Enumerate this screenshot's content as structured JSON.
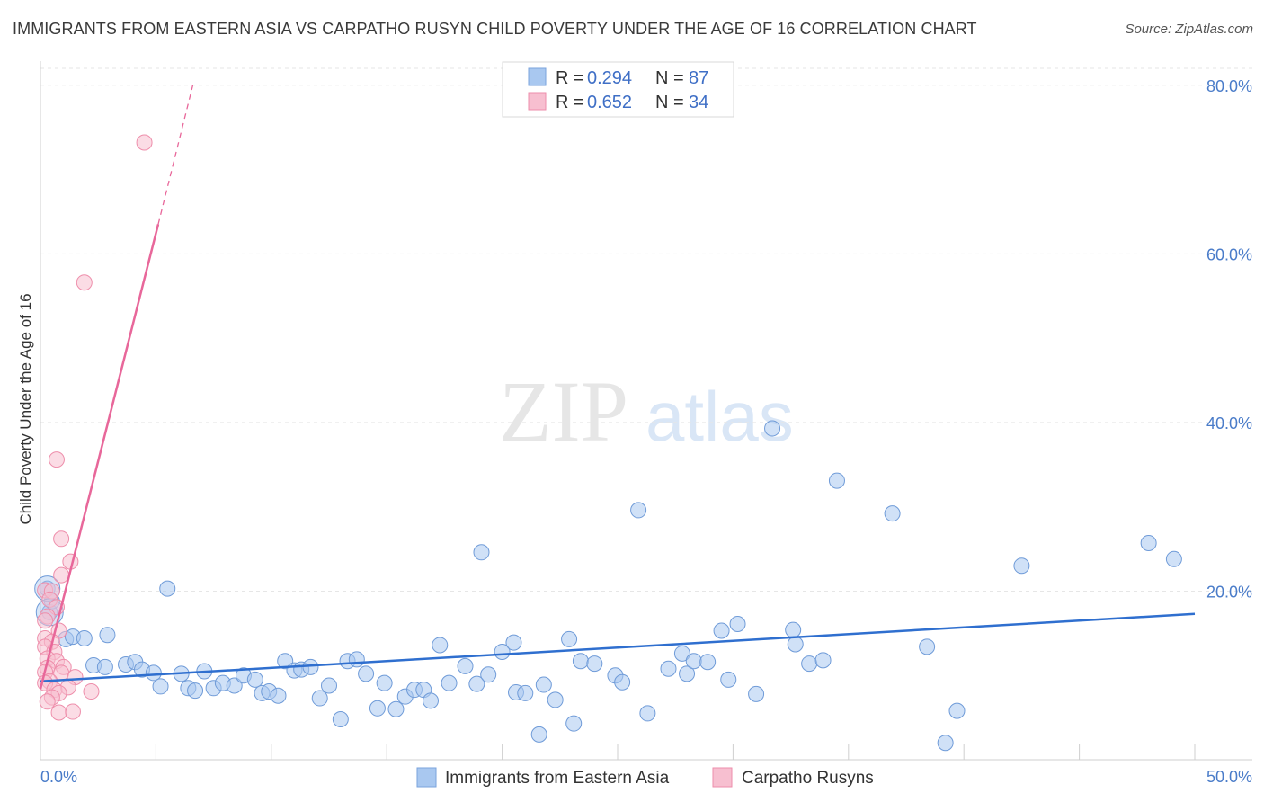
{
  "title": "IMMIGRANTS FROM EASTERN ASIA VS CARPATHO RUSYN CHILD POVERTY UNDER THE AGE OF 16 CORRELATION CHART",
  "source": "Source: ZipAtlas.com",
  "watermark": {
    "zip": "ZIP",
    "atlas": "atlas"
  },
  "legend_top": {
    "r_label": "R = ",
    "n_label": "N = ",
    "entries": [
      {
        "r": "0.294",
        "n": "87",
        "color": "#a9c8f0",
        "stroke": "#7aa3dd"
      },
      {
        "r": "0.652",
        "n": "34",
        "color": "#f7bfd0",
        "stroke": "#ee8eab"
      }
    ]
  },
  "legend_bottom": [
    "Immigrants from Eastern Asia",
    "Carpatho Rusyns"
  ],
  "chart_data": {
    "type": "scatter",
    "title": "IMMIGRANTS FROM EASTERN ASIA VS CARPATHO RUSYN CHILD POVERTY UNDER THE AGE OF 16 CORRELATION CHART",
    "xlabel": "",
    "ylabel": "Child Poverty Under the Age of 16",
    "xlim": [
      0,
      50
    ],
    "ylim": [
      0,
      82
    ],
    "x_tick_labels": [
      "0.0%",
      "50.0%"
    ],
    "y_ticks": [
      20,
      40,
      60,
      80
    ],
    "y_tick_labels": [
      "20.0%",
      "40.0%",
      "60.0%",
      "80.0%"
    ],
    "series": [
      {
        "name": "Immigrants from Eastern Asia",
        "color": "#a9c8f0",
        "stroke": "#6f9bd8",
        "trend_color": "#2f6fcf",
        "trend": {
          "x0": 0,
          "y0": 9.3,
          "x1": 50,
          "y1": 17.3
        },
        "points": [
          [
            0.3,
            20.3
          ],
          [
            0.4,
            17.5
          ],
          [
            1.1,
            14.3
          ],
          [
            1.4,
            14.6
          ],
          [
            1.9,
            14.4
          ],
          [
            2.3,
            11.2
          ],
          [
            2.9,
            14.8
          ],
          [
            2.8,
            11.0
          ],
          [
            3.7,
            11.3
          ],
          [
            4.1,
            11.6
          ],
          [
            4.4,
            10.7
          ],
          [
            4.9,
            10.3
          ],
          [
            5.2,
            8.7
          ],
          [
            5.5,
            20.3
          ],
          [
            6.1,
            10.2
          ],
          [
            6.4,
            8.5
          ],
          [
            6.7,
            8.2
          ],
          [
            7.1,
            10.5
          ],
          [
            7.5,
            8.5
          ],
          [
            7.9,
            9.1
          ],
          [
            8.4,
            8.8
          ],
          [
            8.8,
            10.0
          ],
          [
            9.3,
            9.5
          ],
          [
            9.6,
            7.9
          ],
          [
            9.9,
            8.1
          ],
          [
            10.3,
            7.6
          ],
          [
            10.6,
            11.7
          ],
          [
            11.0,
            10.6
          ],
          [
            11.3,
            10.7
          ],
          [
            11.7,
            11.0
          ],
          [
            12.1,
            7.3
          ],
          [
            12.5,
            8.8
          ],
          [
            13.0,
            4.8
          ],
          [
            13.3,
            11.7
          ],
          [
            13.7,
            11.9
          ],
          [
            14.1,
            10.2
          ],
          [
            14.6,
            6.1
          ],
          [
            14.9,
            9.1
          ],
          [
            15.4,
            6.0
          ],
          [
            15.8,
            7.5
          ],
          [
            16.2,
            8.3
          ],
          [
            16.6,
            8.3
          ],
          [
            16.9,
            7.0
          ],
          [
            17.3,
            13.6
          ],
          [
            17.7,
            9.1
          ],
          [
            18.4,
            11.1
          ],
          [
            18.9,
            9.0
          ],
          [
            19.1,
            24.6
          ],
          [
            19.4,
            10.1
          ],
          [
            20.0,
            12.8
          ],
          [
            20.5,
            13.9
          ],
          [
            20.6,
            8.0
          ],
          [
            21.0,
            7.9
          ],
          [
            21.6,
            3.0
          ],
          [
            21.8,
            8.9
          ],
          [
            22.3,
            7.1
          ],
          [
            22.9,
            14.3
          ],
          [
            23.1,
            4.3
          ],
          [
            23.4,
            11.7
          ],
          [
            24.0,
            11.4
          ],
          [
            24.9,
            10.0
          ],
          [
            25.2,
            9.2
          ],
          [
            25.9,
            29.6
          ],
          [
            26.3,
            5.5
          ],
          [
            27.2,
            10.8
          ],
          [
            27.8,
            12.6
          ],
          [
            28.0,
            10.2
          ],
          [
            28.3,
            11.7
          ],
          [
            28.9,
            11.6
          ],
          [
            29.5,
            15.3
          ],
          [
            29.8,
            9.5
          ],
          [
            30.2,
            16.1
          ],
          [
            31.0,
            7.8
          ],
          [
            31.7,
            39.3
          ],
          [
            32.6,
            15.4
          ],
          [
            32.7,
            13.7
          ],
          [
            33.3,
            11.4
          ],
          [
            33.9,
            11.8
          ],
          [
            34.5,
            33.1
          ],
          [
            36.9,
            29.2
          ],
          [
            38.4,
            13.4
          ],
          [
            39.2,
            2.0
          ],
          [
            39.7,
            5.8
          ],
          [
            42.5,
            23.0
          ],
          [
            48.0,
            25.7
          ],
          [
            49.1,
            23.8
          ],
          [
            0.5,
            18.8
          ]
        ]
      },
      {
        "name": "Carpatho Rusyns",
        "color": "#f7bfd0",
        "stroke": "#ee8eab",
        "trend_color": "#e8679a",
        "trend": {
          "x0": 0,
          "y0": 8.4,
          "x1": 5.1,
          "y1": 63.5
        },
        "trend_dashed": {
          "x0": 5.1,
          "y0": 63.5,
          "x1": 6.6,
          "y1": 80.0
        },
        "points": [
          [
            4.5,
            73.2
          ],
          [
            1.9,
            56.6
          ],
          [
            0.7,
            35.6
          ],
          [
            0.9,
            26.2
          ],
          [
            1.3,
            23.5
          ],
          [
            0.9,
            21.9
          ],
          [
            0.2,
            20.1
          ],
          [
            0.5,
            20.0
          ],
          [
            0.4,
            19.0
          ],
          [
            0.7,
            18.1
          ],
          [
            0.3,
            17.0
          ],
          [
            0.2,
            16.5
          ],
          [
            0.8,
            15.3
          ],
          [
            0.2,
            14.4
          ],
          [
            0.5,
            14.0
          ],
          [
            0.2,
            13.4
          ],
          [
            0.6,
            12.8
          ],
          [
            0.3,
            12.0
          ],
          [
            0.7,
            11.7
          ],
          [
            1.0,
            11.0
          ],
          [
            0.3,
            10.9
          ],
          [
            0.2,
            10.4
          ],
          [
            0.9,
            10.3
          ],
          [
            1.5,
            9.8
          ],
          [
            0.4,
            9.3
          ],
          [
            0.2,
            9.1
          ],
          [
            1.2,
            8.6
          ],
          [
            0.6,
            8.3
          ],
          [
            2.2,
            8.1
          ],
          [
            0.8,
            7.9
          ],
          [
            0.5,
            7.4
          ],
          [
            0.3,
            6.9
          ],
          [
            1.4,
            5.7
          ],
          [
            0.8,
            5.6
          ]
        ]
      }
    ]
  }
}
